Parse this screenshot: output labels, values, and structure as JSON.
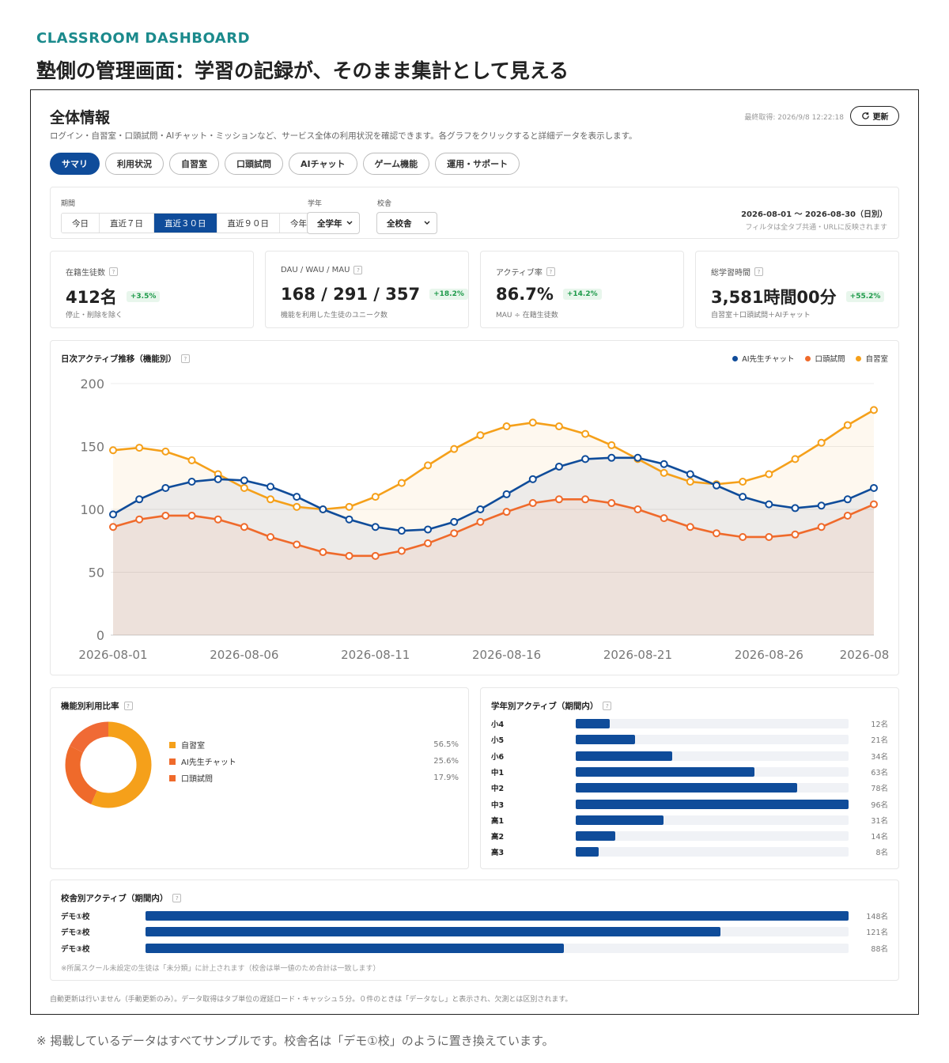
{
  "eyebrow": "CLASSROOM DASHBOARD",
  "headline": "塾側の管理画面：学習の記録が、そのまま集計として見える",
  "panel": {
    "title": "全体情報",
    "description": "ログイン・自習室・口頭試問・AIチャット・ミッションなど、サービス全体の利用状況を確認できます。各グラフをクリックすると詳細データを表示します。",
    "last_fetched": "最終取得: 2026/9/8 12:22:18",
    "refresh_label": "更新",
    "refresh_icon": "refresh-icon"
  },
  "tabs": [
    {
      "label": "サマリ",
      "active": true
    },
    {
      "label": "利用状況",
      "active": false
    },
    {
      "label": "自習室",
      "active": false
    },
    {
      "label": "口頭試問",
      "active": false
    },
    {
      "label": "AIチャット",
      "active": false
    },
    {
      "label": "ゲーム機能",
      "active": false
    },
    {
      "label": "運用・サポート",
      "active": false
    }
  ],
  "filters": {
    "period_label": "期間",
    "periods": [
      {
        "label": "今日",
        "active": false
      },
      {
        "label": "直近７日",
        "active": false
      },
      {
        "label": "直近３０日",
        "active": true
      },
      {
        "label": "直近９０日",
        "active": false
      },
      {
        "label": "今年",
        "active": false
      }
    ],
    "grade_label": "学年",
    "grade_value": "全学年",
    "school_label": "校舎",
    "school_value": "全校舎",
    "range": "2026-08-01 〜 2026-08-30（日別）",
    "range_note": "フィルタは全タブ共通・URLに反映されます"
  },
  "kpis": [
    {
      "label": "在籍生徒数",
      "value": "412名",
      "delta": "+3.5%",
      "sub": "停止・削除を除く"
    },
    {
      "label": "DAU / WAU / MAU",
      "value": "168 / 291 / 357",
      "delta": "+18.2%",
      "sub": "機能を利用した生徒のユニーク数"
    },
    {
      "label": "アクティブ率",
      "value": "86.7%",
      "delta": "+14.2%",
      "sub": "MAU ÷ 在籍生徒数"
    },
    {
      "label": "総学習時間",
      "value": "3,581時間00分",
      "delta": "+55.2%",
      "sub": "自習室＋口頭試問＋AIチャット"
    }
  ],
  "daily_chart": {
    "title": "日次アクティブ推移（機能別）"
  },
  "chart_data": {
    "type": "line",
    "x": [
      "2026-08-01",
      "2026-08-02",
      "2026-08-03",
      "2026-08-04",
      "2026-08-05",
      "2026-08-06",
      "2026-08-07",
      "2026-08-08",
      "2026-08-09",
      "2026-08-10",
      "2026-08-11",
      "2026-08-12",
      "2026-08-13",
      "2026-08-14",
      "2026-08-15",
      "2026-08-16",
      "2026-08-17",
      "2026-08-18",
      "2026-08-19",
      "2026-08-20",
      "2026-08-21",
      "2026-08-22",
      "2026-08-23",
      "2026-08-24",
      "2026-08-25",
      "2026-08-26",
      "2026-08-27",
      "2026-08-28",
      "2026-08-29",
      "2026-08-30"
    ],
    "x_tick_labels": [
      "2026-08-01",
      "2026-08-06",
      "2026-08-11",
      "2026-08-16",
      "2026-08-21",
      "2026-08-26",
      "2026-08"
    ],
    "x_tick_index": [
      0,
      5,
      10,
      15,
      20,
      25,
      29
    ],
    "series": [
      {
        "name": "AI先生チャット",
        "color": "#0f4c9a",
        "values": [
          96,
          108,
          117,
          122,
          124,
          123,
          118,
          110,
          100,
          92,
          86,
          83,
          84,
          90,
          100,
          112,
          124,
          134,
          140,
          141,
          141,
          136,
          128,
          119,
          110,
          104,
          101,
          103,
          108,
          117
        ]
      },
      {
        "name": "口頭試問",
        "color": "#ef6a2b",
        "values": [
          86,
          92,
          95,
          95,
          92,
          86,
          78,
          72,
          66,
          63,
          63,
          67,
          73,
          81,
          90,
          98,
          105,
          108,
          108,
          105,
          100,
          93,
          86,
          81,
          78,
          78,
          80,
          86,
          95,
          104
        ]
      },
      {
        "name": "自習室",
        "color": "#f5a01a",
        "values": [
          147,
          149,
          146,
          139,
          128,
          117,
          108,
          102,
          100,
          102,
          110,
          121,
          135,
          148,
          159,
          166,
          169,
          166,
          160,
          151,
          140,
          129,
          122,
          120,
          122,
          128,
          140,
          153,
          167,
          179
        ]
      }
    ],
    "ylim": [
      0,
      200
    ],
    "y_ticks": [
      0,
      50,
      100,
      150,
      200
    ],
    "grid": true,
    "legend": "top-right"
  },
  "ratio": {
    "title": "機能別利用比率",
    "items": [
      {
        "name": "自習室",
        "value": 56.5,
        "label": "56.5%",
        "color": "#f5a01a"
      },
      {
        "name": "AI先生チャット",
        "value": 25.6,
        "label": "25.6%",
        "color": "#ef6a2b"
      },
      {
        "name": "口頭試問",
        "value": 17.9,
        "label": "17.9%",
        "color": "#ef6a2b"
      }
    ]
  },
  "grades": {
    "title": "学年別アクティブ（期間内）",
    "max": 96,
    "items": [
      {
        "label": "小4",
        "value": 12,
        "count": "12名"
      },
      {
        "label": "小5",
        "value": 21,
        "count": "21名"
      },
      {
        "label": "小6",
        "value": 34,
        "count": "34名"
      },
      {
        "label": "中1",
        "value": 63,
        "count": "63名"
      },
      {
        "label": "中2",
        "value": 78,
        "count": "78名"
      },
      {
        "label": "中3",
        "value": 96,
        "count": "96名"
      },
      {
        "label": "高1",
        "value": 31,
        "count": "31名"
      },
      {
        "label": "高2",
        "value": 14,
        "count": "14名"
      },
      {
        "label": "高3",
        "value": 8,
        "count": "8名"
      }
    ]
  },
  "schools": {
    "title": "校舎別アクティブ（期間内）",
    "max": 148,
    "items": [
      {
        "label": "デモ①校",
        "value": 148,
        "count": "148名"
      },
      {
        "label": "デモ②校",
        "value": 121,
        "count": "121名"
      },
      {
        "label": "デモ③校",
        "value": 88,
        "count": "88名"
      }
    ],
    "note": "※所属スクール未設定の生徒は「未分類」に計上されます（校舎は単一値のため合計は一致します）"
  },
  "footnote": "自動更新は行いません（手動更新のみ）。データ取得はタブ単位の遅延ロード・キャッシュ５分。０件のときは「データなし」と表示され、欠測とは区別されます。",
  "page_note": "※ 掲載しているデータはすべてサンプルです。校舎名は「デモ①校」のように置き換えています。"
}
